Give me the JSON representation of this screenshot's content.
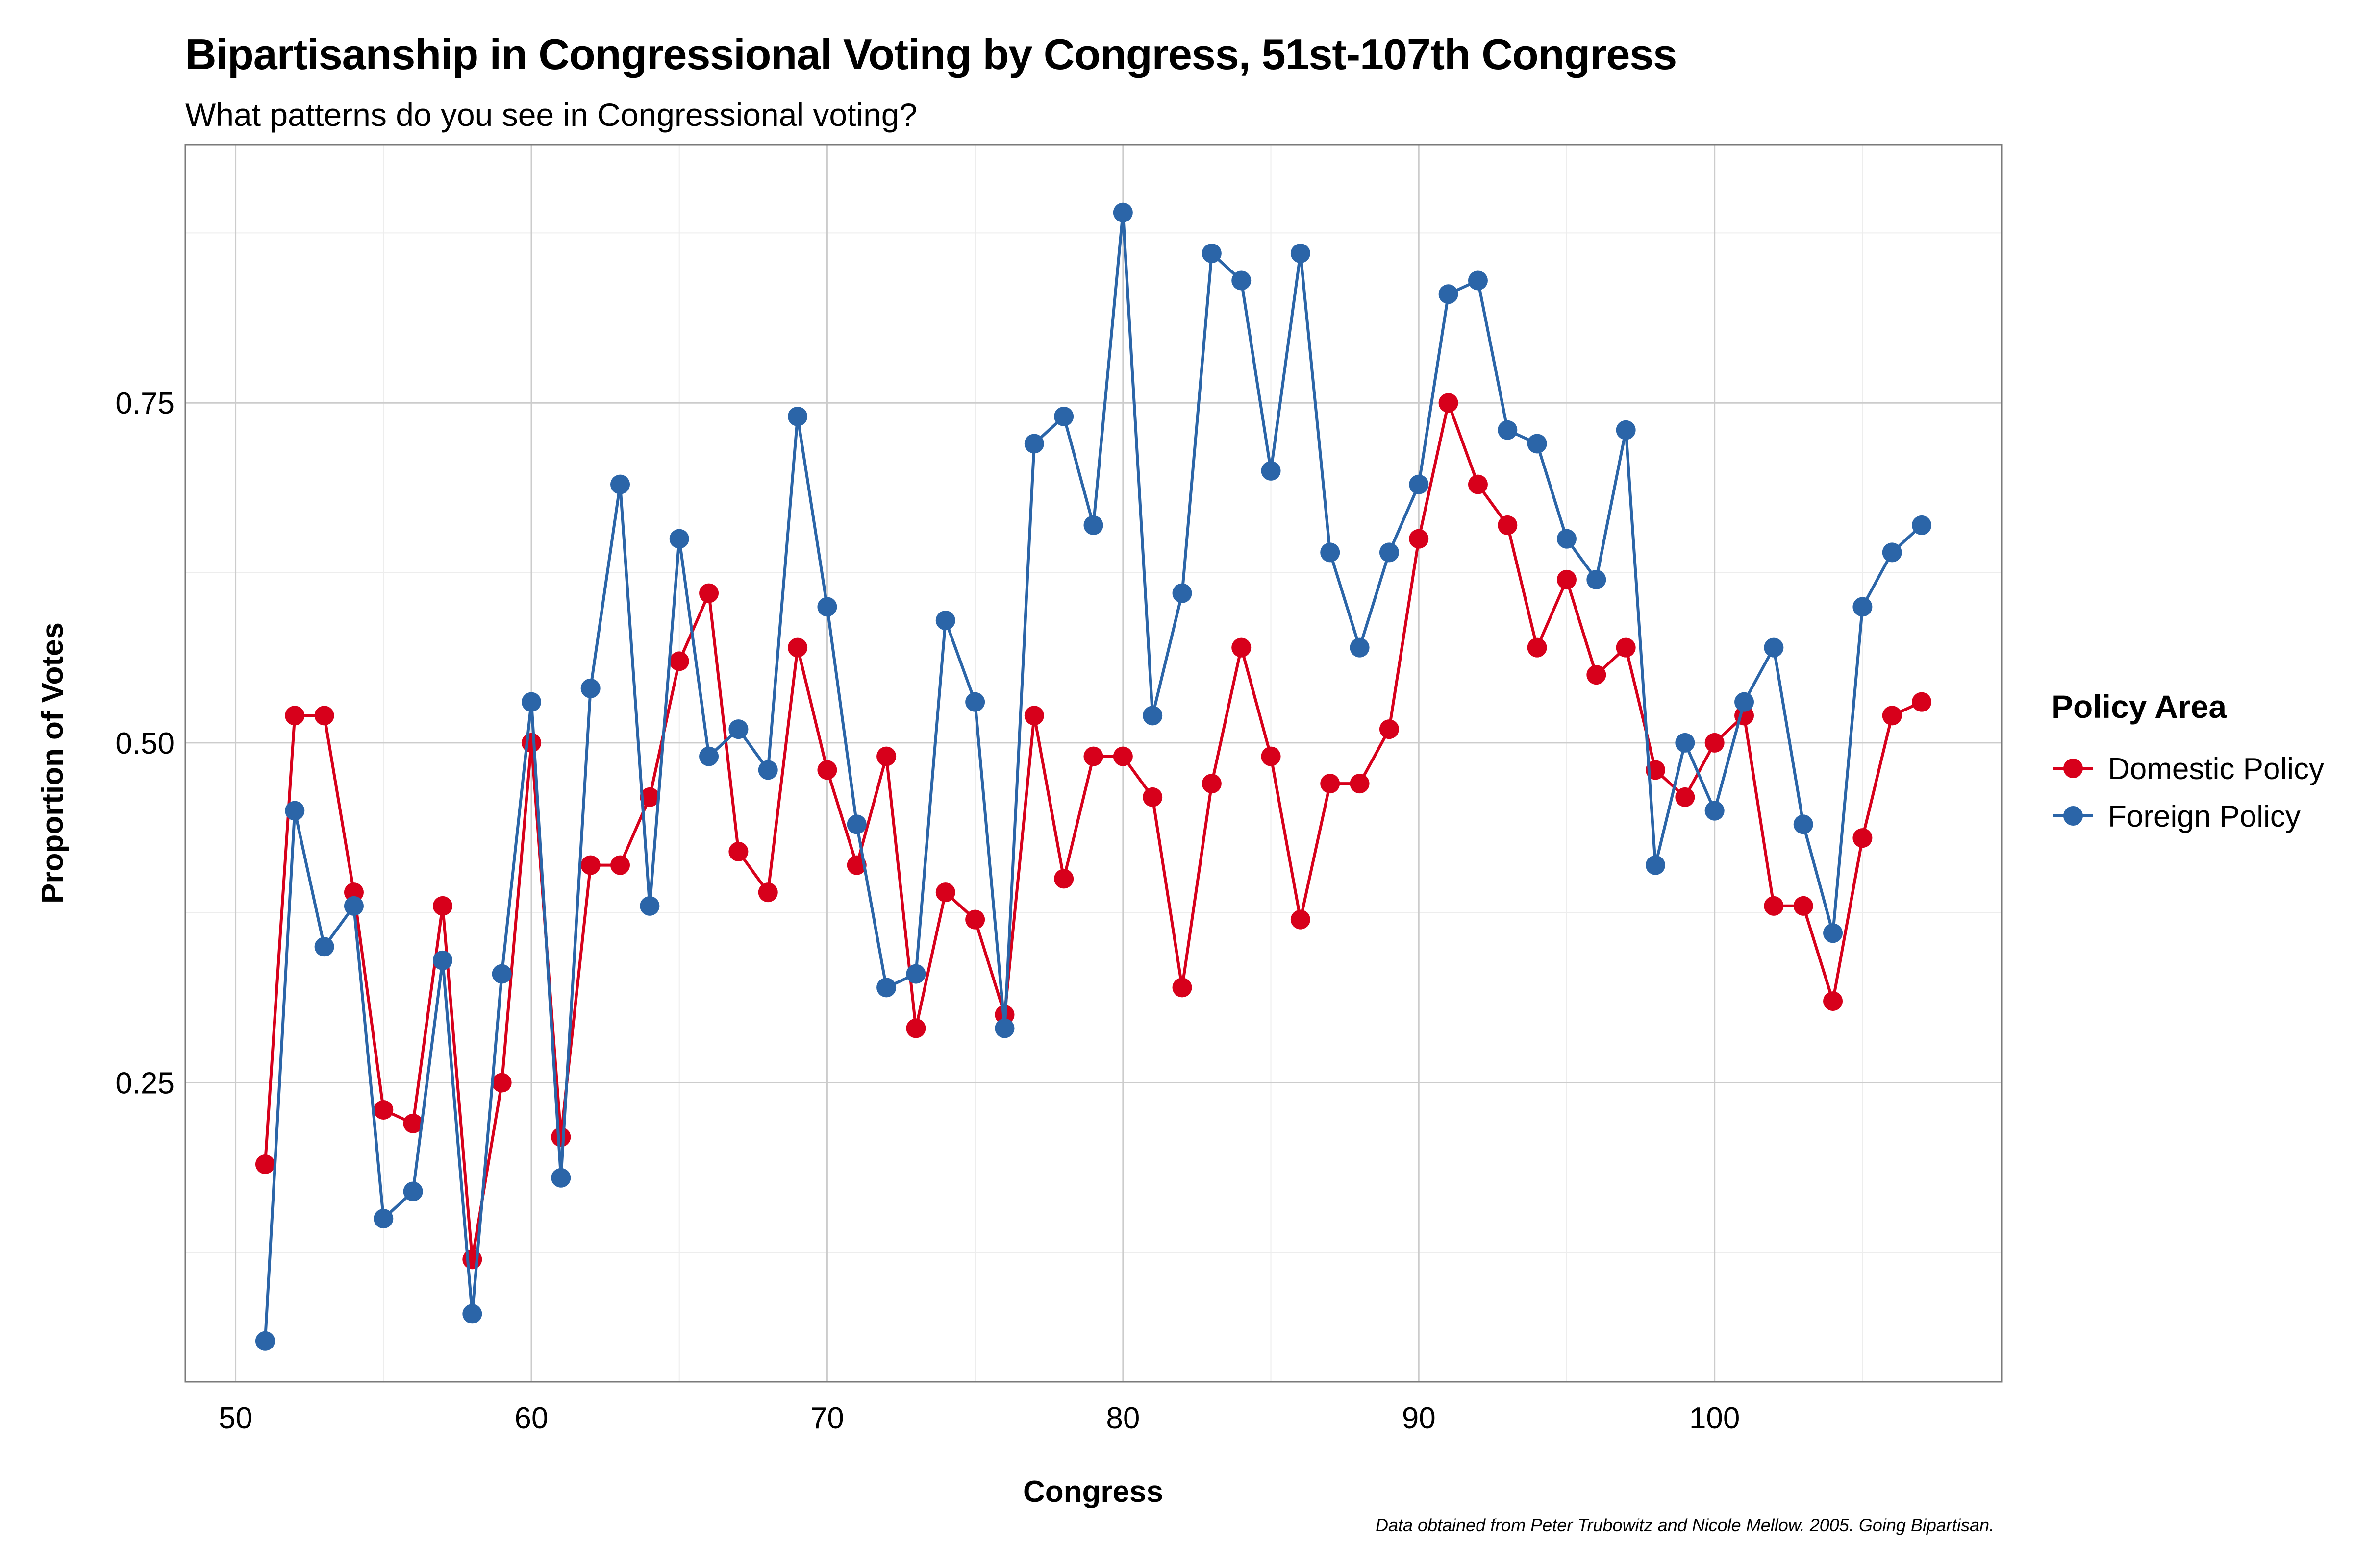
{
  "title": "Bipartisanship in Congressional Voting by Congress, 51st-107th Congress",
  "subtitle": "What patterns do you see in Congressional voting?",
  "caption": "Data obtained from Peter Trubowitz and Nicole Mellow. 2005. Going Bipartisan.",
  "chart_data": {
    "type": "line",
    "title": "Bipartisanship in Congressional Voting by Congress, 51st-107th Congress",
    "subtitle": "What patterns do you see in Congressional voting?",
    "xlabel": "Congress",
    "ylabel": "Proportion of Votes",
    "xlim": [
      48.3,
      109.7
    ],
    "ylim": [
      0.03,
      0.94
    ],
    "x_ticks": [
      50,
      60,
      70,
      80,
      90,
      100
    ],
    "y_ticks": [
      0.25,
      0.5,
      0.75
    ],
    "y_tick_labels": [
      "0.25",
      "0.50",
      "0.75"
    ],
    "grid": true,
    "markers": true,
    "legend_title": "Policy Area",
    "legend_position": "right",
    "x": [
      51,
      52,
      53,
      54,
      55,
      56,
      57,
      58,
      59,
      60,
      61,
      62,
      63,
      64,
      65,
      66,
      67,
      68,
      69,
      70,
      71,
      72,
      73,
      74,
      75,
      76,
      77,
      78,
      79,
      80,
      81,
      82,
      83,
      84,
      85,
      86,
      87,
      88,
      89,
      90,
      91,
      92,
      93,
      94,
      95,
      96,
      97,
      98,
      99,
      100,
      101,
      102,
      103,
      104,
      105,
      106,
      107
    ],
    "series": [
      {
        "name": "Domestic Policy",
        "color": "#d7001b",
        "values": [
          0.19,
          0.52,
          0.52,
          0.39,
          0.23,
          0.22,
          0.38,
          0.12,
          0.25,
          0.5,
          0.21,
          0.41,
          0.41,
          0.46,
          0.56,
          0.61,
          0.42,
          0.39,
          0.57,
          0.48,
          0.41,
          0.49,
          0.29,
          0.39,
          0.37,
          0.3,
          0.52,
          0.4,
          0.49,
          0.49,
          0.46,
          0.32,
          0.47,
          0.57,
          0.49,
          0.37,
          0.47,
          0.47,
          0.51,
          0.65,
          0.75,
          0.69,
          0.66,
          0.57,
          0.62,
          0.55,
          0.57,
          0.48,
          0.46,
          0.5,
          0.52,
          0.38,
          0.38,
          0.31,
          0.43,
          0.52,
          0.53
        ]
      },
      {
        "name": "Foreign Policy",
        "color": "#2b65a8",
        "values": [
          0.06,
          0.45,
          0.35,
          0.38,
          0.15,
          0.17,
          0.34,
          0.08,
          0.33,
          0.53,
          0.18,
          0.54,
          0.69,
          0.38,
          0.65,
          0.49,
          0.51,
          0.48,
          0.74,
          0.6,
          0.44,
          0.32,
          0.33,
          0.59,
          0.53,
          0.29,
          0.72,
          0.74,
          0.66,
          0.89,
          0.52,
          0.61,
          0.86,
          0.84,
          0.7,
          0.86,
          0.64,
          0.57,
          0.64,
          0.69,
          0.83,
          0.84,
          0.73,
          0.72,
          0.65,
          0.62,
          0.73,
          0.41,
          0.5,
          0.45,
          0.53,
          0.57,
          0.44,
          0.36,
          0.6,
          0.64,
          0.66
        ]
      }
    ]
  }
}
